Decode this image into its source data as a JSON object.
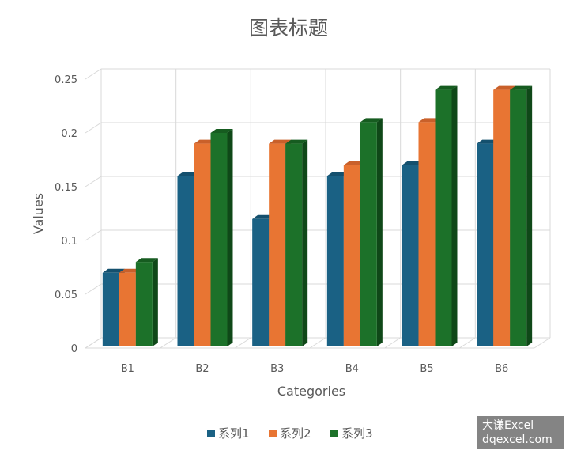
{
  "chart_data": {
    "type": "bar",
    "title": "图表标题",
    "xlabel": "Categories",
    "ylabel": "Values",
    "categories": [
      "B1",
      "B2",
      "B3",
      "B4",
      "B5",
      "B6"
    ],
    "series": [
      {
        "name": "系列1",
        "values": [
          0.07,
          0.16,
          0.12,
          0.16,
          0.17,
          0.19
        ]
      },
      {
        "name": "系列2",
        "values": [
          0.07,
          0.19,
          0.19,
          0.17,
          0.21,
          0.24
        ]
      },
      {
        "name": "系列3",
        "values": [
          0.08,
          0.2,
          0.19,
          0.21,
          0.24,
          0.24
        ]
      }
    ],
    "yticks": [
      "0",
      "0.05",
      "0.1",
      "0.15",
      "0.2",
      "0.25"
    ],
    "ylim": [
      0,
      0.25
    ],
    "grid": true,
    "legend": "bottom",
    "style": "3d-clustered-column"
  },
  "colors": {
    "series": [
      "#1A6184",
      "#E87533",
      "#1C7129"
    ],
    "side": [
      "#0E3F58",
      "#A84F1E",
      "#0F4818"
    ],
    "top": [
      "#14506E",
      "#C9602A",
      "#165C20"
    ],
    "grid": "#d9d9d9"
  },
  "watermark": {
    "line1": "大谦Excel",
    "line2": "dqexcel.com"
  }
}
